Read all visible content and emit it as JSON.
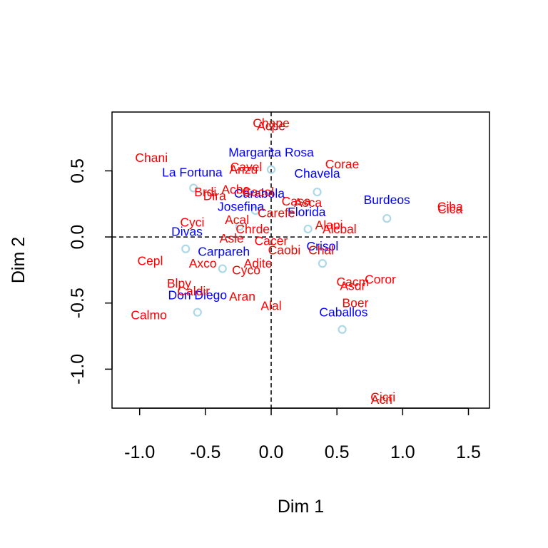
{
  "chart_data": {
    "type": "scatter",
    "title": "",
    "xlabel": "Dim 1",
    "ylabel": "Dim 2",
    "xlim": [
      -1.21,
      1.66
    ],
    "ylim": [
      -1.295,
      0.945
    ],
    "xticks": [
      -1.0,
      -0.5,
      0.0,
      0.5,
      1.0,
      1.5
    ],
    "yticks": [
      -1.0,
      -0.5,
      0.0,
      0.5
    ],
    "tick_labels_x": [
      "-1.0",
      "-0.5",
      "0.0",
      "0.5",
      "1.0",
      "1.5"
    ],
    "tick_labels_y": [
      "-1.0",
      "-0.5",
      "0.0",
      "0.5"
    ],
    "reference_lines": {
      "x": 0,
      "y": 0,
      "style": "dashed"
    },
    "grid": false,
    "colors": {
      "row_labels": "#ff0000",
      "column_labels": "#0000ff",
      "markers": "#add8e6",
      "axes": "#000000"
    },
    "series": [
      {
        "color": "#0000ff",
        "points": [
          {
            "label": "Margarita Rosa",
            "x": 0.0,
            "y": 0.64
          },
          {
            "label": "La Fortuna",
            "x": -0.6,
            "y": 0.49
          },
          {
            "label": "Chavela",
            "x": 0.35,
            "y": 0.48
          },
          {
            "label": "Carabola",
            "x": -0.09,
            "y": 0.33
          },
          {
            "label": "Josefina",
            "x": -0.23,
            "y": 0.23
          },
          {
            "label": "Burdeos",
            "x": 0.88,
            "y": 0.28
          },
          {
            "label": "Florida",
            "x": 0.27,
            "y": 0.19
          },
          {
            "label": "Divas",
            "x": -0.64,
            "y": 0.04
          },
          {
            "label": "Carpareh",
            "x": -0.36,
            "y": -0.11
          },
          {
            "label": "Crisol",
            "x": 0.39,
            "y": -0.07
          },
          {
            "label": "Don Diego",
            "x": -0.56,
            "y": -0.44
          },
          {
            "label": "Caballos",
            "x": 0.55,
            "y": -0.57
          }
        ]
      },
      {
        "color": "#ff0000",
        "points": [
          {
            "label": "Chape",
            "x": 0.0,
            "y": 0.86
          },
          {
            "label": "Acpe",
            "x": 0.0,
            "y": 0.84
          },
          {
            "label": "Chani",
            "x": -0.91,
            "y": 0.6
          },
          {
            "label": "Corae",
            "x": 0.54,
            "y": 0.55
          },
          {
            "label": "Cavel",
            "x": -0.19,
            "y": 0.53
          },
          {
            "label": "Anzu",
            "x": -0.21,
            "y": 0.51
          },
          {
            "label": "Brdi",
            "x": -0.5,
            "y": 0.34
          },
          {
            "label": "Dira",
            "x": -0.43,
            "y": 0.31
          },
          {
            "label": "Acba",
            "x": -0.27,
            "y": 0.36
          },
          {
            "label": "Cacol",
            "x": -0.1,
            "y": 0.34
          },
          {
            "label": "Casa",
            "x": 0.19,
            "y": 0.27
          },
          {
            "label": "Asca",
            "x": 0.28,
            "y": 0.26
          },
          {
            "label": "Carefe",
            "x": 0.04,
            "y": 0.18
          },
          {
            "label": "Ciba",
            "x": 1.36,
            "y": 0.23
          },
          {
            "label": "Cica",
            "x": 1.36,
            "y": 0.21
          },
          {
            "label": "Cyci",
            "x": -0.6,
            "y": 0.11
          },
          {
            "label": "Acal",
            "x": -0.26,
            "y": 0.13
          },
          {
            "label": "Chrde",
            "x": -0.14,
            "y": 0.06
          },
          {
            "label": "Alapi",
            "x": 0.44,
            "y": 0.09
          },
          {
            "label": "Alcbal",
            "x": 0.52,
            "y": 0.06
          },
          {
            "label": "Asle",
            "x": -0.3,
            "y": -0.01
          },
          {
            "label": "Cacer",
            "x": 0.0,
            "y": -0.03
          },
          {
            "label": "Caobi",
            "x": 0.1,
            "y": -0.1
          },
          {
            "label": "Chal",
            "x": 0.38,
            "y": -0.1
          },
          {
            "label": "Cepl",
            "x": -0.92,
            "y": -0.18
          },
          {
            "label": "Axco",
            "x": -0.52,
            "y": -0.2
          },
          {
            "label": "Adite",
            "x": -0.1,
            "y": -0.2
          },
          {
            "label": "Cyco",
            "x": -0.19,
            "y": -0.25
          },
          {
            "label": "Coror",
            "x": 0.83,
            "y": -0.32
          },
          {
            "label": "Cacm",
            "x": 0.62,
            "y": -0.34
          },
          {
            "label": "Asdr",
            "x": 0.62,
            "y": -0.37
          },
          {
            "label": "Blpy",
            "x": -0.7,
            "y": -0.35
          },
          {
            "label": "Caldir",
            "x": -0.59,
            "y": -0.41
          },
          {
            "label": "Aran",
            "x": -0.22,
            "y": -0.45
          },
          {
            "label": "Alal",
            "x": 0.0,
            "y": -0.52
          },
          {
            "label": "Boer",
            "x": 0.64,
            "y": -0.5
          },
          {
            "label": "Calmo",
            "x": -0.93,
            "y": -0.59
          },
          {
            "label": "Cicri",
            "x": 0.85,
            "y": -1.21
          },
          {
            "label": "Acri",
            "x": 0.84,
            "y": -1.23
          }
        ]
      }
    ],
    "markers": [
      {
        "x": -0.59,
        "y": 0.37
      },
      {
        "x": 0.0,
        "y": 0.51
      },
      {
        "x": 0.35,
        "y": 0.34
      },
      {
        "x": -0.12,
        "y": 0.2
      },
      {
        "x": 0.88,
        "y": 0.14
      },
      {
        "x": 0.28,
        "y": 0.06
      },
      {
        "x": -0.24,
        "y": 0.08
      },
      {
        "x": -0.65,
        "y": -0.09
      },
      {
        "x": -0.37,
        "y": -0.24
      },
      {
        "x": 0.39,
        "y": -0.2
      },
      {
        "x": -0.56,
        "y": -0.57
      },
      {
        "x": 0.54,
        "y": -0.7
      }
    ]
  }
}
